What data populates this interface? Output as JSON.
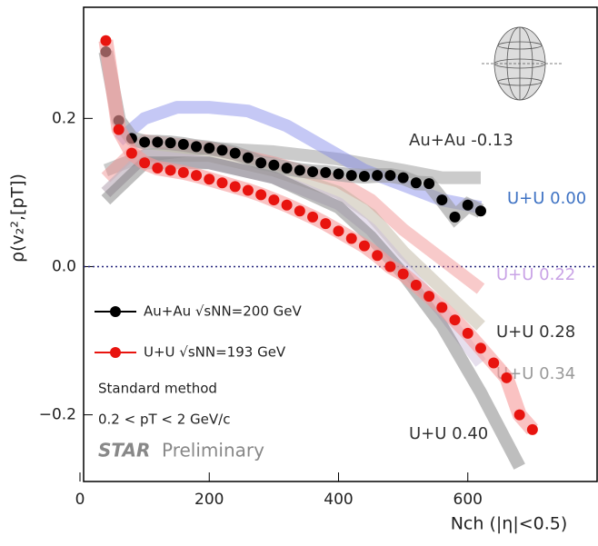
{
  "chart_data": {
    "type": "scatter",
    "x_label": "Nch (|η|<0.5)",
    "y_label": "ρ(v₂²,[pT])",
    "xlim": [
      0,
      800
    ],
    "ylim": [
      -0.29,
      0.35
    ],
    "xticks": [
      0,
      200,
      400,
      600
    ],
    "yticks": [
      {
        "value": -0.2,
        "label": "−0.2"
      },
      {
        "value": 0,
        "label": "0.0"
      },
      0.2
    ],
    "reference_line": 0,
    "series": [
      {
        "name": "Au+Au -0.13",
        "kind": "model",
        "color": "#8c8c8c",
        "label_color": "#333333",
        "x": [
          40,
          100,
          200,
          300,
          400,
          500,
          560,
          620
        ],
        "values": [
          0.13,
          0.15,
          0.16,
          0.155,
          0.145,
          0.13,
          0.12,
          0.12
        ]
      },
      {
        "name": "U+U 0.00",
        "kind": "model",
        "color": "#7f86e8",
        "label_color": "#3f73c4",
        "x": [
          60,
          100,
          150,
          200,
          260,
          320,
          380,
          440,
          500,
          560,
          620
        ],
        "values": [
          0.17,
          0.2,
          0.215,
          0.215,
          0.21,
          0.19,
          0.16,
          0.13,
          0.11,
          0.09,
          0.08
        ]
      },
      {
        "name": "U+U 0.22",
        "kind": "model",
        "color": "#f08a8a",
        "label_color": "#c9a3e6",
        "x": [
          40,
          100,
          200,
          300,
          400,
          450,
          500,
          560,
          620
        ],
        "values": [
          0.12,
          0.17,
          0.16,
          0.14,
          0.115,
          0.09,
          0.05,
          0.01,
          -0.03
        ]
      },
      {
        "name": "U+U 0.28",
        "kind": "model",
        "color": "#b8ad96",
        "label_color": "#333333",
        "x": [
          40,
          100,
          200,
          300,
          400,
          450,
          500,
          560,
          620
        ],
        "values": [
          0.1,
          0.15,
          0.15,
          0.13,
          0.1,
          0.07,
          0.02,
          -0.03,
          -0.08
        ]
      },
      {
        "name": "U+U 0.34",
        "kind": "model",
        "color": "#c8b8d8",
        "label_color": "#9a9a9a",
        "x": [
          40,
          100,
          200,
          300,
          400,
          450,
          500,
          560,
          620
        ],
        "values": [
          0.1,
          0.15,
          0.14,
          0.12,
          0.085,
          0.05,
          0.0,
          -0.06,
          -0.13
        ]
      },
      {
        "name": "U+U 0.40",
        "kind": "model",
        "color": "#6e6e6e",
        "label_color": "#333333",
        "x": [
          40,
          100,
          200,
          300,
          400,
          450,
          500,
          560,
          620,
          680
        ],
        "values": [
          0.09,
          0.14,
          0.14,
          0.12,
          0.08,
          0.04,
          -0.01,
          -0.08,
          -0.17,
          -0.27
        ]
      },
      {
        "name": "Au+Au √sNN=200 GeV",
        "kind": "data",
        "color": "#000000",
        "band_color": "#9a9a9a",
        "x": [
          40,
          60,
          80,
          100,
          120,
          140,
          160,
          180,
          200,
          220,
          240,
          260,
          280,
          300,
          320,
          340,
          360,
          380,
          400,
          420,
          440,
          460,
          480,
          500,
          520,
          540,
          560,
          580,
          600,
          620
        ],
        "values": [
          0.29,
          0.197,
          0.173,
          0.168,
          0.168,
          0.167,
          0.165,
          0.162,
          0.16,
          0.157,
          0.153,
          0.147,
          0.14,
          0.137,
          0.133,
          0.13,
          0.128,
          0.127,
          0.125,
          0.123,
          0.122,
          0.123,
          0.123,
          0.12,
          0.113,
          0.112,
          0.09,
          0.067,
          0.083,
          0.075
        ]
      },
      {
        "name": "U+U √sNN=193 GeV",
        "kind": "data",
        "color": "#e8140f",
        "band_color": "#f79a9a",
        "x": [
          40,
          60,
          80,
          100,
          120,
          140,
          160,
          180,
          200,
          220,
          240,
          260,
          280,
          300,
          320,
          340,
          360,
          380,
          400,
          420,
          440,
          460,
          480,
          500,
          520,
          540,
          560,
          580,
          600,
          620,
          640,
          660,
          680,
          700
        ],
        "values": [
          0.305,
          0.185,
          0.153,
          0.14,
          0.133,
          0.13,
          0.127,
          0.123,
          0.118,
          0.113,
          0.108,
          0.103,
          0.097,
          0.09,
          0.083,
          0.075,
          0.067,
          0.058,
          0.048,
          0.038,
          0.028,
          0.015,
          0.0,
          -0.01,
          -0.025,
          -0.04,
          -0.055,
          -0.072,
          -0.09,
          -0.11,
          -0.13,
          -0.15,
          -0.2,
          -0.22
        ]
      }
    ],
    "annotations": {
      "method": "Standard method",
      "pt_range": "0.2 < pT < 2 GeV/c",
      "experiment": "STAR",
      "status": "Preliminary"
    }
  }
}
